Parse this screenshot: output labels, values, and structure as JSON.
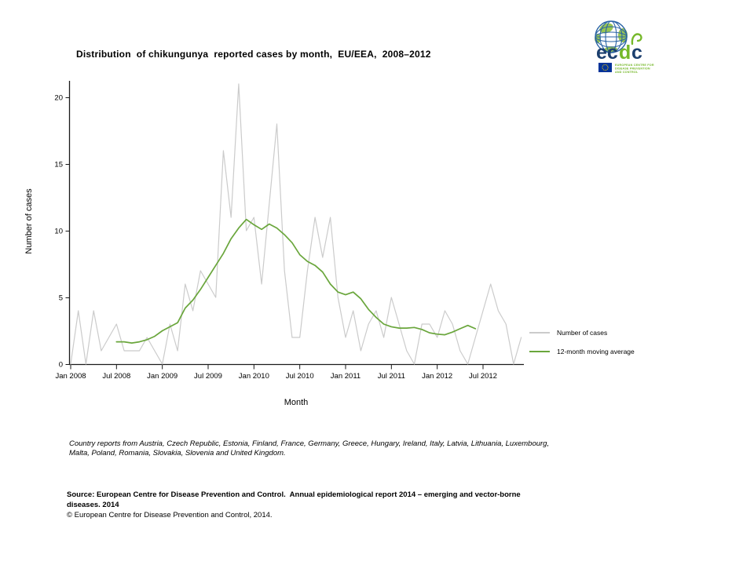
{
  "header": {
    "title": "Distribution  of chikungunya  reported cases by month,  EU/EEA,  2008–2012"
  },
  "logo": {
    "wordmark_ec": "ec",
    "wordmark_d": "d",
    "wordmark_c": "c",
    "tagline_line1": "EUROPEAN CENTRE FOR",
    "tagline_line2": "DISEASE PREVENTION",
    "tagline_line3": "AND CONTROL",
    "blue": "#1c3f6e",
    "green": "#76b82a"
  },
  "chart_data": {
    "type": "line",
    "title": "Distribution of chikungunya reported cases by month, EU/EEA, 2008–2012",
    "xlabel": "Month",
    "ylabel": "Number of cases",
    "x_start": "Jan 2008",
    "x_end": "Dec 2012",
    "months_total": 60,
    "x_tick_labels": [
      "Jan 2008",
      "Jul 2008",
      "Jan 2009",
      "Jul 2009",
      "Jan 2010",
      "Jul 2010",
      "Jan 2011",
      "Jul 2011",
      "Jan 2012",
      "Jul 2012"
    ],
    "x_tick_month_index": [
      0,
      6,
      12,
      18,
      24,
      30,
      36,
      42,
      48,
      54
    ],
    "y_ticks": [
      0,
      5,
      10,
      15,
      20
    ],
    "ylim": [
      0,
      21
    ],
    "grid": false,
    "legend_position": "right of plot, middle-low",
    "series": [
      {
        "name": "Number of cases",
        "color": "#cbcbcb",
        "start_month_index": 0,
        "values": [
          0,
          4,
          0,
          4,
          1,
          2,
          3,
          1,
          1,
          1,
          2,
          1,
          0,
          3,
          1,
          6,
          4,
          7,
          6,
          5,
          16,
          11,
          21,
          10,
          11,
          6,
          12,
          18,
          7,
          2,
          2,
          7,
          11,
          8,
          11,
          5,
          2,
          4,
          1,
          3,
          4,
          2,
          5,
          3,
          1,
          0,
          3,
          3,
          2,
          4,
          3,
          1,
          0,
          2,
          4,
          6,
          4,
          3,
          0,
          2
        ]
      },
      {
        "name": "12-month moving average",
        "color": "#6aa63c",
        "start_month_index": 6,
        "values": [
          1.67,
          1.67,
          1.58,
          1.67,
          1.83,
          2.08,
          2.5,
          2.8,
          3.1,
          4.2,
          4.8,
          5.6,
          6.5,
          7.4,
          8.3,
          9.4,
          10.2,
          10.85,
          10.45,
          10.1,
          10.5,
          10.2,
          9.7,
          9.1,
          8.2,
          7.7,
          7.4,
          6.9,
          6.0,
          5.4,
          5.2,
          5.4,
          4.9,
          4.1,
          3.5,
          3.0,
          2.8,
          2.7,
          2.7,
          2.75,
          2.6,
          2.35,
          2.25,
          2.2,
          2.4,
          2.65,
          2.9,
          2.65
        ]
      }
    ]
  },
  "legend": {
    "items": [
      {
        "label": "Number of cases"
      },
      {
        "label": "12-month moving average"
      }
    ]
  },
  "footnote": {
    "line1": "Country reports from Austria, Czech Republic, Estonia, Finland, France, Germany, Greece, Hungary, Ireland, Italy, Latvia, Lithuania, Luxembourg,",
    "line2": "Malta, Poland, Romania, Slovakia, Slovenia and United Kingdom."
  },
  "source": {
    "line1": "Source: European Centre for Disease Prevention and Control.  Annual epidemiological report 2014 – emerging and vector-borne",
    "line2": "diseases. 2014",
    "copyright": "© European Centre for Disease Prevention and Control, 2014."
  }
}
